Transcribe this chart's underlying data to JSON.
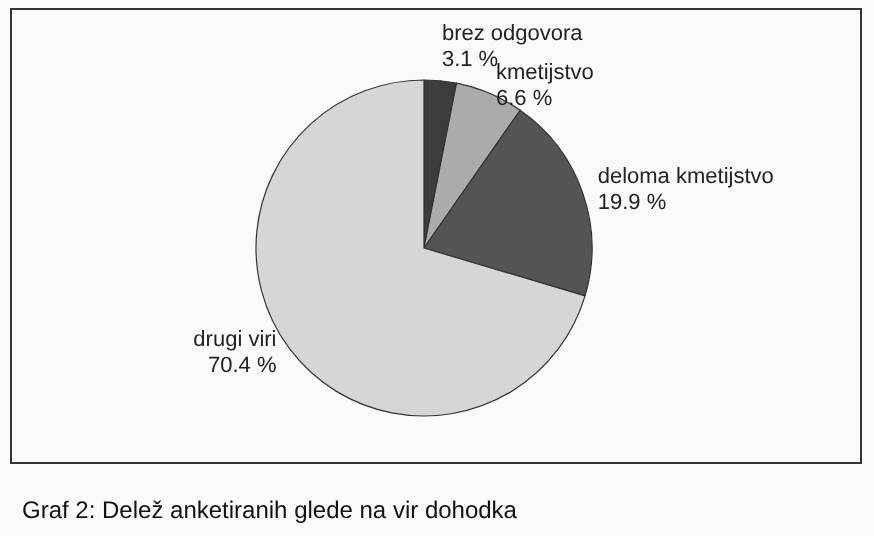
{
  "chart_data": {
    "type": "pie",
    "title": "Graf 2: Delež anketiranih glede na vir dohodka",
    "categories": [
      "brez odgovora",
      "kmetijstvo",
      "deloma kmetijstvo",
      "drugi viri"
    ],
    "values": [
      3.1,
      6.6,
      19.9,
      70.4
    ],
    "colors": [
      "#3c3c3c",
      "#ababab",
      "#545454",
      "#d6d6d6"
    ],
    "value_labels": [
      "3.1 %",
      "6.6 %",
      "19.9 %",
      "70.4 %"
    ]
  }
}
